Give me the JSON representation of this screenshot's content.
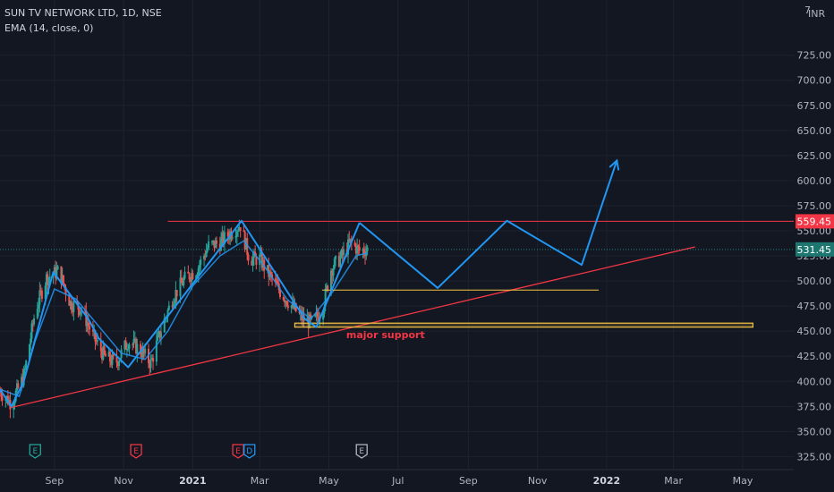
{
  "header": {
    "symbol_line": "SUN TV NETWORK LTD, 1D, NSE",
    "indicator_line": "EMA (14, close, 0)"
  },
  "axis": {
    "currency_label": "INR",
    "currency_prefix": "7"
  },
  "colors": {
    "background": "#131722",
    "up": "#26a69a",
    "down": "#ef5350",
    "ema": "#2196f3",
    "projection": "#2196f3",
    "resistance": "#f23645",
    "trendline": "#f23645",
    "support_box": "#f5c542",
    "support_line": "#f5c542",
    "last_price_tag": "#1e7670",
    "resistance_tag": "#f23645",
    "annotation": "#f23645"
  },
  "chart_data": {
    "type": "candlestick",
    "title": "SUN TV NETWORK LTD, 1D, NSE",
    "indicator": "EMA (14, close, 0)",
    "ylim": [
      312,
      780
    ],
    "y_ticks": [
      325,
      350,
      375,
      400,
      425,
      450,
      475,
      500,
      525,
      550,
      575,
      600,
      625,
      650,
      675,
      700,
      725
    ],
    "x_range": [
      "2020-07-15",
      "2022-06-15"
    ],
    "x_ticks": [
      {
        "date": "2020-09-01",
        "label": "Sep",
        "strong": false
      },
      {
        "date": "2020-11-01",
        "label": "Nov",
        "strong": false
      },
      {
        "date": "2021-01-01",
        "label": "2021",
        "strong": true
      },
      {
        "date": "2021-03-01",
        "label": "Mar",
        "strong": false
      },
      {
        "date": "2021-05-01",
        "label": "May",
        "strong": false
      },
      {
        "date": "2021-07-01",
        "label": "Jul",
        "strong": false
      },
      {
        "date": "2021-09-01",
        "label": "Sep",
        "strong": false
      },
      {
        "date": "2021-11-01",
        "label": "Nov",
        "strong": false
      },
      {
        "date": "2022-01-01",
        "label": "2022",
        "strong": true
      },
      {
        "date": "2022-03-01",
        "label": "Mar",
        "strong": false
      },
      {
        "date": "2022-05-01",
        "label": "May",
        "strong": false
      }
    ],
    "price_path": [
      {
        "date": "2020-07-15",
        "close": 390
      },
      {
        "date": "2020-07-25",
        "close": 378
      },
      {
        "date": "2020-08-05",
        "close": 405
      },
      {
        "date": "2020-08-15",
        "close": 470
      },
      {
        "date": "2020-08-25",
        "close": 503
      },
      {
        "date": "2020-09-05",
        "close": 510
      },
      {
        "date": "2020-09-15",
        "close": 478
      },
      {
        "date": "2020-09-25",
        "close": 472
      },
      {
        "date": "2020-10-05",
        "close": 445
      },
      {
        "date": "2020-10-15",
        "close": 425
      },
      {
        "date": "2020-10-25",
        "close": 418
      },
      {
        "date": "2020-11-05",
        "close": 440
      },
      {
        "date": "2020-11-15",
        "close": 432
      },
      {
        "date": "2020-11-25",
        "close": 418
      },
      {
        "date": "2020-12-05",
        "close": 455
      },
      {
        "date": "2020-12-15",
        "close": 485
      },
      {
        "date": "2020-12-25",
        "close": 502
      },
      {
        "date": "2021-01-05",
        "close": 512
      },
      {
        "date": "2021-01-15",
        "close": 535
      },
      {
        "date": "2021-01-25",
        "close": 538
      },
      {
        "date": "2021-02-05",
        "close": 550
      },
      {
        "date": "2021-02-12",
        "close": 556
      },
      {
        "date": "2021-02-20",
        "close": 522
      },
      {
        "date": "2021-03-01",
        "close": 522
      },
      {
        "date": "2021-03-10",
        "close": 505
      },
      {
        "date": "2021-03-20",
        "close": 488
      },
      {
        "date": "2021-03-30",
        "close": 474
      },
      {
        "date": "2021-04-08",
        "close": 462
      },
      {
        "date": "2021-04-16",
        "close": 458
      },
      {
        "date": "2021-04-25",
        "close": 470
      },
      {
        "date": "2021-05-03",
        "close": 512
      },
      {
        "date": "2021-05-12",
        "close": 524
      },
      {
        "date": "2021-05-20",
        "close": 538
      },
      {
        "date": "2021-05-28",
        "close": 530
      },
      {
        "date": "2021-06-04",
        "close": 531.45
      }
    ],
    "ema_path": [
      {
        "date": "2020-07-15",
        "value": 392
      },
      {
        "date": "2020-08-01",
        "value": 385
      },
      {
        "date": "2020-08-15",
        "value": 440
      },
      {
        "date": "2020-09-01",
        "value": 492
      },
      {
        "date": "2020-09-20",
        "value": 482
      },
      {
        "date": "2020-10-10",
        "value": 455
      },
      {
        "date": "2020-10-30",
        "value": 428
      },
      {
        "date": "2020-11-20",
        "value": 422
      },
      {
        "date": "2020-12-10",
        "value": 450
      },
      {
        "date": "2021-01-01",
        "value": 495
      },
      {
        "date": "2021-01-25",
        "value": 525
      },
      {
        "date": "2021-02-15",
        "value": 540
      },
      {
        "date": "2021-03-05",
        "value": 515
      },
      {
        "date": "2021-03-25",
        "value": 482
      },
      {
        "date": "2021-04-15",
        "value": 462
      },
      {
        "date": "2021-05-05",
        "value": 490
      },
      {
        "date": "2021-05-25",
        "value": 525
      },
      {
        "date": "2021-06-04",
        "value": 528
      }
    ],
    "zigzag": [
      {
        "date": "2020-07-15",
        "price": 392
      },
      {
        "date": "2020-07-25",
        "price": 375
      },
      {
        "date": "2020-08-05",
        "price": 400
      },
      {
        "date": "2020-08-31",
        "price": 509
      },
      {
        "date": "2020-10-01",
        "price": 462
      },
      {
        "date": "2020-10-10",
        "price": 443
      },
      {
        "date": "2020-11-05",
        "price": 414
      },
      {
        "date": "2021-02-13",
        "price": 560
      },
      {
        "date": "2021-04-10",
        "price": 462
      },
      {
        "date": "2021-04-20",
        "price": 454
      },
      {
        "date": "2021-05-28",
        "price": 558
      }
    ],
    "projection": [
      {
        "date": "2021-05-28",
        "price": 558
      },
      {
        "date": "2021-08-05",
        "price": 493
      },
      {
        "date": "2021-10-05",
        "price": 560
      },
      {
        "date": "2021-12-10",
        "price": 516
      },
      {
        "date": "2022-01-10",
        "price": 620
      }
    ],
    "resistance": {
      "price": 559.45,
      "from": "2020-12-10"
    },
    "trendline": {
      "from": {
        "date": "2020-07-25",
        "price": 374
      },
      "to": {
        "date": "2022-03-20",
        "price": 534
      }
    },
    "support_line": {
      "price": 491,
      "from": "2021-04-25",
      "to": "2021-12-25"
    },
    "support_box": {
      "price_low": 454,
      "price_high": 458,
      "from": "2021-04-01",
      "to": "2022-05-10"
    },
    "annotation": {
      "text": "major support",
      "date": "2021-06-20",
      "price": 443
    },
    "last_price": 531.45,
    "resistance_price_label": "559.45",
    "last_price_label": "531.45",
    "events": [
      {
        "date": "2020-08-15",
        "letter": "E",
        "color": "#26a69a"
      },
      {
        "date": "2020-11-12",
        "letter": "E",
        "color": "#f23645"
      },
      {
        "date": "2021-02-10",
        "letter": "E",
        "color": "#f23645"
      },
      {
        "date": "2021-02-20",
        "letter": "D",
        "color": "#2196f3"
      },
      {
        "date": "2021-05-30",
        "letter": "E",
        "color": "#b2b5be"
      }
    ]
  }
}
